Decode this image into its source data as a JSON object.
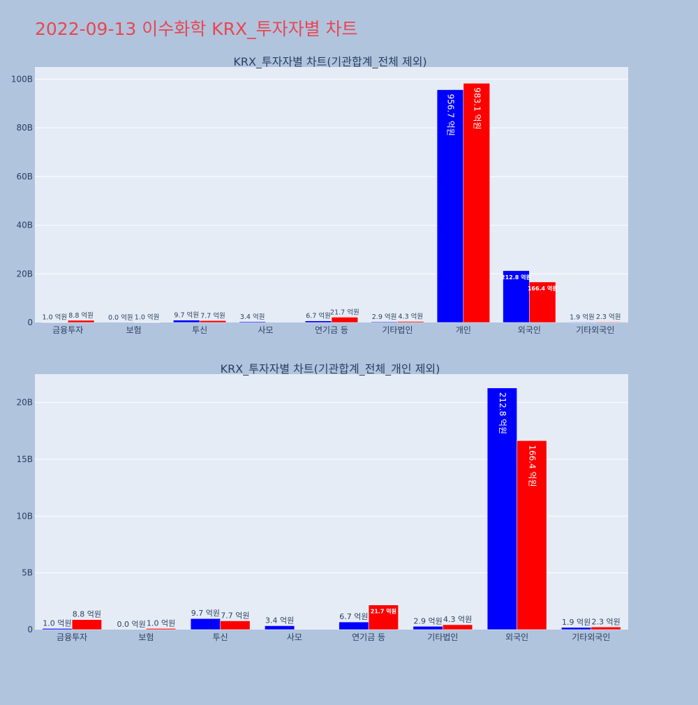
{
  "page": {
    "title": "2022-09-13 이수화학 KRX_투자자별 차트"
  },
  "chart_data": [
    {
      "type": "bar",
      "title": "KRX_투자자별 차트(기관합계_전체 제외)",
      "categories": [
        "금융투자",
        "보험",
        "투신",
        "사모",
        "연기금 등",
        "기타법인",
        "개인",
        "외국인",
        "기타외국인"
      ],
      "ylim": [
        0,
        105000000000
      ],
      "yticks": [
        0,
        20000000000,
        40000000000,
        60000000000,
        80000000000,
        100000000000
      ],
      "ytick_labels": [
        "0",
        "20B",
        "40B",
        "60B",
        "80B",
        "100B"
      ],
      "grid": true,
      "series": [
        {
          "color": "#0000ff",
          "values": [
            100000000,
            0,
            970000000,
            340000000,
            670000000,
            290000000,
            95670000000,
            21280000000,
            190000000
          ],
          "labels": [
            "1.0 억원",
            "0.0 억원",
            "9.7 억원",
            "3.4 억원",
            "6.7 억원",
            "2.9 억원",
            "956.7 억원",
            "212.8 억원",
            "1.9 억원"
          ]
        },
        {
          "color": "#ff0000",
          "values": [
            880000000,
            100000000,
            770000000,
            0,
            2170000000,
            430000000,
            98310000000,
            16640000000,
            230000000
          ],
          "labels": [
            "8.8 억원",
            "1.0 억원",
            "7.7 억원",
            "",
            "21.7 억원",
            "4.3 억원",
            "983.1 억원",
            "166.4 억원",
            "2.3 억원"
          ]
        }
      ]
    },
    {
      "type": "bar",
      "title": "KRX_투자자별 차트(기관합계_전체_개인 제외)",
      "categories": [
        "금융투자",
        "보험",
        "투신",
        "사모",
        "연기금 등",
        "기타법인",
        "외국인",
        "기타외국인"
      ],
      "ylim": [
        0,
        22500000000
      ],
      "yticks": [
        0,
        5000000000,
        10000000000,
        15000000000,
        20000000000
      ],
      "ytick_labels": [
        "0",
        "5B",
        "10B",
        "15B",
        "20B"
      ],
      "grid": true,
      "series": [
        {
          "color": "#0000ff",
          "values": [
            100000000,
            0,
            970000000,
            340000000,
            670000000,
            290000000,
            21280000000,
            190000000
          ],
          "labels": [
            "1.0 억원",
            "0.0 억원",
            "9.7 억원",
            "3.4 억원",
            "6.7 억원",
            "2.9 억원",
            "212.8 억원",
            "1.9 억원"
          ]
        },
        {
          "color": "#ff0000",
          "values": [
            880000000,
            100000000,
            770000000,
            0,
            2170000000,
            430000000,
            16640000000,
            230000000
          ],
          "labels": [
            "8.8 억원",
            "1.0 억원",
            "7.7 억원",
            "",
            "21.7 억원",
            "4.3 억원",
            "166.4 억원",
            "2.3 억원"
          ]
        }
      ]
    }
  ]
}
